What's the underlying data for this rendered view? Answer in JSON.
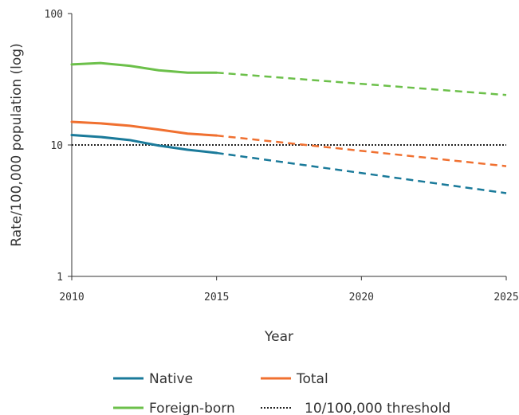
{
  "chart_data": {
    "type": "line",
    "title": "",
    "xlabel": "Year",
    "ylabel": "Rate/100,000 population (log)",
    "yscale": "log",
    "xlim": [
      2010,
      2025
    ],
    "ylim": [
      1,
      100
    ],
    "x_ticks": [
      "2010",
      "2015",
      "2020",
      "2025"
    ],
    "y_ticks": [
      "1",
      "10",
      "100"
    ],
    "grid": false,
    "legend_position": "bottom",
    "series": [
      {
        "name": "Native",
        "color": "#1a7a9a",
        "observed": {
          "x": [
            2010,
            2011,
            2012,
            2013,
            2014,
            2015
          ],
          "y": [
            11.9,
            11.5,
            10.9,
            9.9,
            9.2,
            8.7
          ]
        },
        "projected": {
          "x": [
            2015,
            2025
          ],
          "y": [
            8.7,
            4.3
          ]
        }
      },
      {
        "name": "Total",
        "color": "#f07030",
        "observed": {
          "x": [
            2010,
            2011,
            2012,
            2013,
            2014,
            2015
          ],
          "y": [
            15.0,
            14.6,
            14.0,
            13.1,
            12.2,
            11.8
          ]
        },
        "projected": {
          "x": [
            2015,
            2025
          ],
          "y": [
            11.8,
            6.9
          ]
        }
      },
      {
        "name": "Foreign-born",
        "color": "#6cc04a",
        "observed": {
          "x": [
            2010,
            2011,
            2012,
            2013,
            2014,
            2015
          ],
          "y": [
            41.0,
            42.0,
            40.0,
            37.0,
            35.5,
            35.5
          ]
        },
        "projected": {
          "x": [
            2015,
            2025
          ],
          "y": [
            35.5,
            24.0
          ]
        }
      }
    ],
    "threshold": {
      "name": "10/100,000 threshold",
      "y": 10,
      "color": "#222222"
    }
  },
  "legend": {
    "native": "Native",
    "total": "Total",
    "foreign_born": "Foreign-born",
    "threshold": "10/100,000 threshold"
  }
}
